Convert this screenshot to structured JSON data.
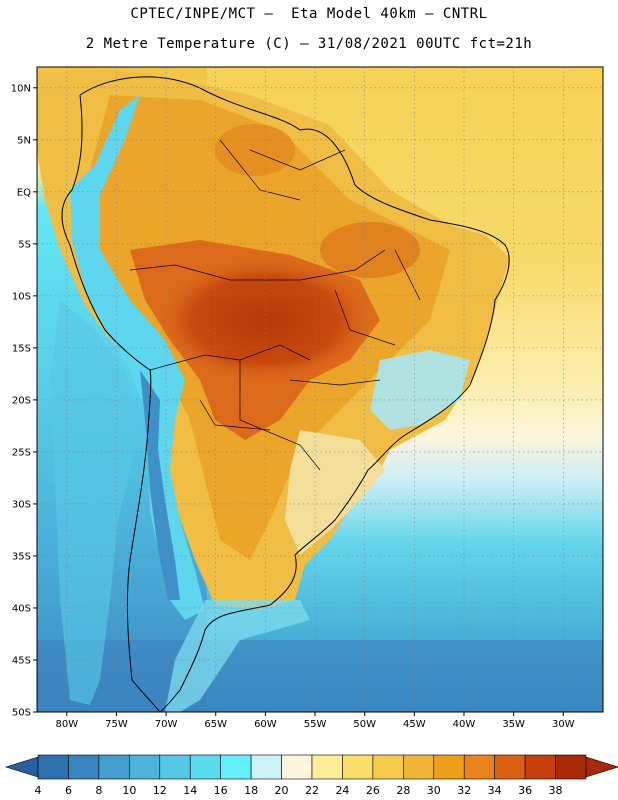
{
  "header": {
    "line1": "CPTEC/INPE/MCT –  Eta Model 40km – CNTRL",
    "line2": "2 Metre Temperature (C) – 31/08/2021 00UTC fct=21h"
  },
  "map": {
    "lat_labels": [
      "10N",
      "5N",
      "EQ",
      "5S",
      "10S",
      "15S",
      "20S",
      "25S",
      "30S",
      "35S",
      "40S",
      "45S",
      "50S"
    ],
    "lon_labels": [
      "80W",
      "75W",
      "70W",
      "65W",
      "60W",
      "55W",
      "50W",
      "45W",
      "40W",
      "35W",
      "30W"
    ],
    "lat_range": [
      -50,
      12
    ],
    "lon_range": [
      -83,
      -26
    ],
    "graticule": "dotted"
  },
  "legend": {
    "units": "C",
    "labels": [
      "4",
      "6",
      "8",
      "10",
      "12",
      "14",
      "16",
      "18",
      "20",
      "22",
      "24",
      "26",
      "28",
      "30",
      "32",
      "34",
      "36",
      "38"
    ],
    "colors": [
      "#2e6fae",
      "#3a85c0",
      "#459ecf",
      "#4fb4dc",
      "#55c8e6",
      "#5adcef",
      "#64f0fa",
      "#cdf3f9",
      "#fdf5dc",
      "#fdec9a",
      "#f9de6a",
      "#f4cb4b",
      "#efb537",
      "#ef9f1a",
      "#e9841c",
      "#dc6014",
      "#c5400e",
      "#a92a09"
    ]
  }
}
